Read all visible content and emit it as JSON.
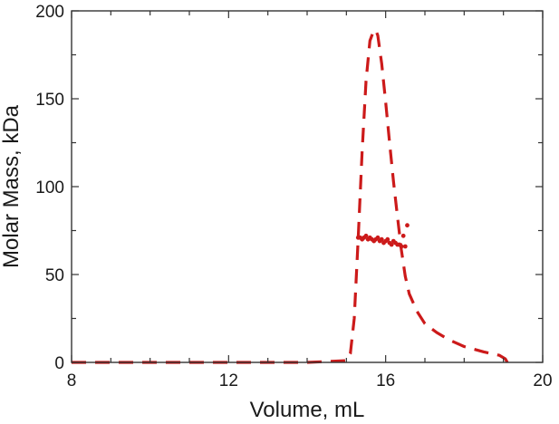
{
  "chart_data": {
    "type": "line",
    "title": "",
    "xlabel": "Volume, mL",
    "ylabel": "Molar Mass, kDa",
    "xlim": [
      8,
      20
    ],
    "ylim": [
      0,
      200
    ],
    "x_ticks": [
      8,
      12,
      16,
      20
    ],
    "y_ticks": [
      0,
      50,
      100,
      150,
      200
    ],
    "x_tick_labels": [
      "8",
      "12",
      "16",
      "20"
    ],
    "y_tick_labels": [
      "0",
      "50",
      "100",
      "150",
      "200"
    ],
    "grid": false,
    "legend": "none",
    "color": "#cc1a1a",
    "series": [
      {
        "style": "dashed",
        "x": [
          8.0,
          10.0,
          12.0,
          14.0,
          15.0,
          15.1,
          15.2,
          15.3,
          15.4,
          15.5,
          15.6,
          15.7,
          15.75,
          15.8,
          15.9,
          16.0,
          16.1,
          16.2,
          16.3,
          16.4,
          16.5,
          16.6,
          16.8,
          17.0,
          17.3,
          17.6,
          18.0,
          18.5,
          18.9,
          19.05,
          19.1
        ],
        "y": [
          0,
          0,
          0,
          0,
          1,
          5,
          25,
          70,
          120,
          160,
          183,
          189,
          189,
          186,
          170,
          148,
          125,
          103,
          83,
          64,
          49,
          39,
          29,
          22,
          17,
          13,
          9,
          6,
          4,
          2,
          0
        ]
      },
      {
        "style": "markers",
        "x": [
          15.3,
          15.35,
          15.4,
          15.45,
          15.5,
          15.55,
          15.6,
          15.65,
          15.7,
          15.75,
          15.8,
          15.85,
          15.9,
          15.95,
          16.0,
          16.05,
          16.1,
          16.15,
          16.2,
          16.25,
          16.3,
          16.35,
          16.4,
          16.45,
          16.5,
          16.55
        ],
        "y": [
          71,
          71,
          70,
          71,
          72,
          70,
          71,
          70,
          69,
          70,
          71,
          69,
          70,
          68,
          69,
          70,
          68,
          67,
          69,
          68,
          67,
          67,
          66,
          72,
          66,
          78
        ]
      }
    ]
  }
}
